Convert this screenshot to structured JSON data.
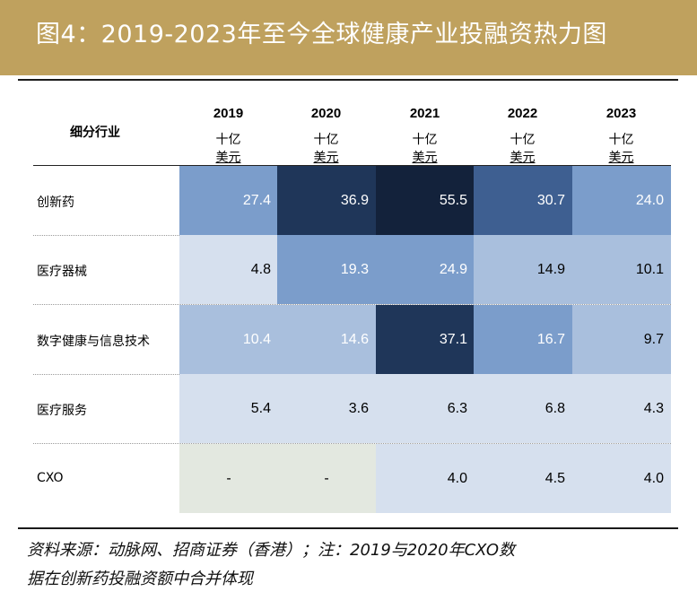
{
  "header": {
    "title": "图4：2019-2023年至今全球健康产业投融资热力图",
    "accent_color": "#bfa15e"
  },
  "table": {
    "segment_header": "细分行业",
    "unit_line1": "十亿",
    "unit_line2": "美元"
  },
  "footer": {
    "source_line1": "资料来源：动脉网、招商证券（香港）；注：2019与2020年CXO数",
    "source_line2": "据在创新药投融资额中合并体现"
  },
  "chart_data": {
    "type": "heatmap",
    "title": "2019-2023年至今全球健康产业投融资热力图",
    "unit": "十亿美元",
    "columns": [
      "2019",
      "2020",
      "2021",
      "2022",
      "2023"
    ],
    "rows": [
      "创新药",
      "医疗器械",
      "数字健康与信息技术",
      "医疗服务",
      "CXO"
    ],
    "display": [
      [
        "27.4",
        "36.9",
        "55.5",
        "30.7",
        "24.0"
      ],
      [
        "4.8",
        "19.3",
        "24.9",
        "14.9",
        "10.1"
      ],
      [
        "10.4",
        "14.6",
        "37.1",
        "16.7",
        "9.7"
      ],
      [
        "5.4",
        "3.6",
        "6.3",
        "6.8",
        "4.3"
      ],
      [
        "-",
        "-",
        "4.0",
        "4.5",
        "4.0"
      ]
    ],
    "values": [
      [
        27.4,
        36.9,
        55.5,
        30.7,
        24.0
      ],
      [
        4.8,
        19.3,
        24.9,
        14.9,
        10.1
      ],
      [
        10.4,
        14.6,
        37.1,
        16.7,
        9.7
      ],
      [
        5.4,
        3.6,
        6.3,
        6.8,
        4.3
      ],
      [
        null,
        null,
        4.0,
        4.5,
        4.0
      ]
    ],
    "colors": {
      "scale": [
        "#d6e0ee",
        "#a9bfdd",
        "#7b9dcb",
        "#3e5f91",
        "#1f3659",
        "#13223b"
      ],
      "missing": "#e3e8e0"
    }
  }
}
